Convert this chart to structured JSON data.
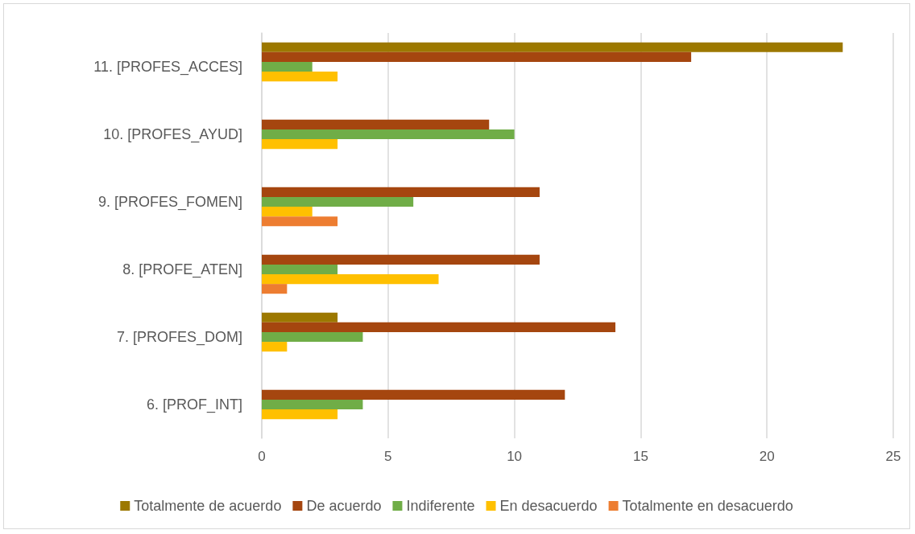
{
  "chart_data": {
    "type": "bar",
    "orientation": "horizontal",
    "categories": [
      "11. [PROFES_ACCES]",
      "10. [PROFES_AYUD]",
      "9. [PROFES_FOMEN]",
      "8. [PROFE_ATEN]",
      "7. [PROFES_DOM]",
      "6. [PROF_INT]"
    ],
    "series": [
      {
        "name": "Totalmente de acuerdo",
        "color": "#9c7800",
        "values": [
          23,
          null,
          null,
          null,
          3,
          null
        ]
      },
      {
        "name": "De acuerdo",
        "color": "#a5460f",
        "values": [
          17,
          9,
          11,
          11,
          14,
          12
        ]
      },
      {
        "name": "Indiferente",
        "color": "#70ad47",
        "values": [
          2,
          10,
          6,
          3,
          4,
          4
        ]
      },
      {
        "name": "En desacuerdo",
        "color": "#ffc000",
        "values": [
          3,
          3,
          2,
          7,
          1,
          3
        ]
      },
      {
        "name": "Totalmente en desacuerdo",
        "color": "#ed7d31",
        "values": [
          null,
          null,
          3,
          1,
          null,
          null
        ]
      }
    ],
    "xlim": [
      0,
      25
    ],
    "xticks": [
      0,
      5,
      10,
      15,
      20,
      25
    ],
    "grid": "x",
    "legend": "bottom"
  }
}
